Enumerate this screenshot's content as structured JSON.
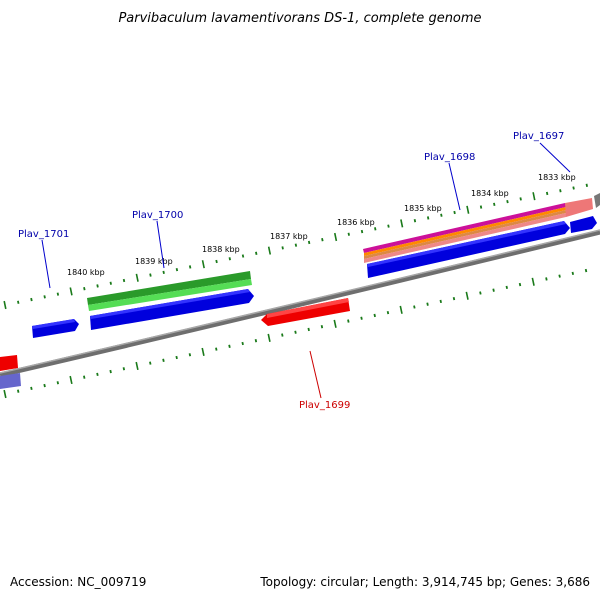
{
  "title": "Parvibaculum lavamentivorans DS-1, complete genome",
  "footer": {
    "accession": "Accession: NC_009719",
    "summary": "Topology: circular; Length: 3,914,745 bp; Genes: 3,686"
  },
  "colors": {
    "backbone": "#808080",
    "ticks": "#1a7a1a",
    "forward_gene": "#0000ee",
    "reverse_gene": "#ee0000",
    "green_feature": "#33bb33",
    "magenta_feature": "#dd22aa",
    "orange_feature": "#ff9900",
    "salmon_feature": "#ee7777",
    "forward_label": "#0000aa",
    "reverse_label": "#cc0000"
  },
  "ruler": {
    "unit": "kbp",
    "labels": [
      "1840 kbp",
      "1839 kbp",
      "1838 kbp",
      "1837 kbp",
      "1836 kbp",
      "1835 kbp",
      "1834 kbp",
      "1833 kbp"
    ]
  },
  "genes": [
    {
      "name": "Plav_1701",
      "strand": "forward"
    },
    {
      "name": "Plav_1700",
      "strand": "forward"
    },
    {
      "name": "Plav_1699",
      "strand": "reverse"
    },
    {
      "name": "Plav_1698",
      "strand": "forward"
    },
    {
      "name": "Plav_1697",
      "strand": "forward"
    }
  ]
}
